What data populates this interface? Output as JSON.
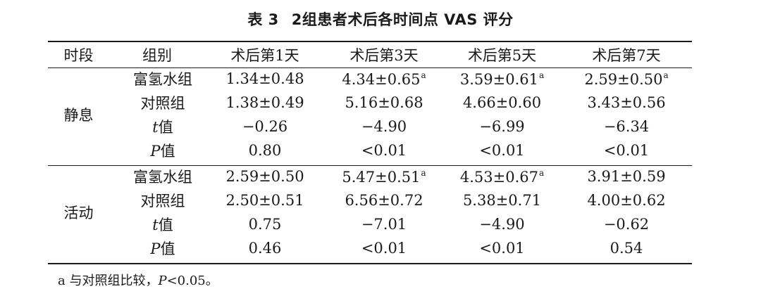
{
  "title": {
    "label": "表 3",
    "text": "2组患者术后各时间点 VAS 评分"
  },
  "table": {
    "headers": [
      "时段",
      "组别",
      "术后第1天",
      "术后第3天",
      "术后第5天",
      "术后第7天"
    ],
    "sections": [
      {
        "period": "静息",
        "rows": [
          {
            "group": "富氢水组",
            "italic_prefix": "",
            "values": [
              "1.34±0.48",
              "4.34±0.65",
              "3.59±0.61",
              "2.59±0.50"
            ],
            "marks": [
              "",
              "a",
              "a",
              "a"
            ]
          },
          {
            "group": "对照组",
            "italic_prefix": "",
            "values": [
              "1.38±0.49",
              "5.16±0.68",
              "4.66±0.60",
              "3.43±0.56"
            ],
            "marks": [
              "",
              "",
              "",
              ""
            ]
          },
          {
            "group": "值",
            "italic_prefix": "t",
            "values": [
              "−0.26",
              "−4.90",
              "−6.99",
              "−6.34"
            ],
            "marks": [
              "",
              "",
              "",
              ""
            ]
          },
          {
            "group": "值",
            "italic_prefix": "P",
            "values": [
              "0.80",
              "<0.01",
              "<0.01",
              "<0.01"
            ],
            "marks": [
              "",
              "",
              "",
              ""
            ]
          }
        ]
      },
      {
        "period": "活动",
        "rows": [
          {
            "group": "富氢水组",
            "italic_prefix": "",
            "values": [
              "2.59±0.50",
              "5.47±0.51",
              "4.53±0.67",
              "3.91±0.59"
            ],
            "marks": [
              "",
              "a",
              "a",
              ""
            ]
          },
          {
            "group": "对照组",
            "italic_prefix": "",
            "values": [
              "2.50±0.51",
              "6.56±0.72",
              "5.38±0.71",
              "4.00±0.62"
            ],
            "marks": [
              "",
              "",
              "",
              ""
            ]
          },
          {
            "group": "值",
            "italic_prefix": "t",
            "values": [
              "0.75",
              "−7.01",
              "−4.90",
              "−0.62"
            ],
            "marks": [
              "",
              "",
              "",
              ""
            ]
          },
          {
            "group": "值",
            "italic_prefix": "P",
            "values": [
              "0.46",
              "<0.01",
              "<0.01",
              "0.54"
            ],
            "marks": [
              "",
              "",
              "",
              ""
            ]
          }
        ]
      }
    ]
  },
  "footnote": {
    "prefix": "a 与对照组比较，",
    "italic": "P",
    "suffix": "<0.05。"
  }
}
